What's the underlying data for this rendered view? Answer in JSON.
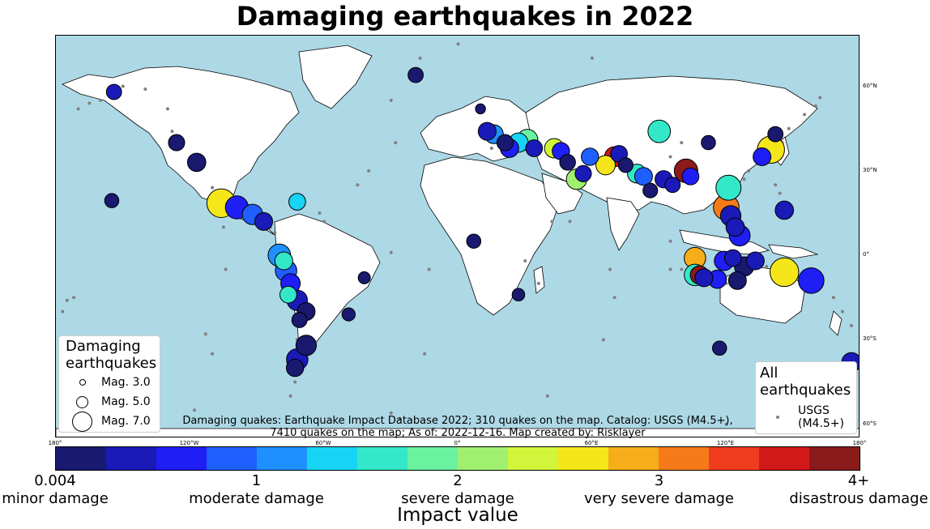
{
  "title": "Damaging earthquakes in 2022",
  "map": {
    "lat_labels": [
      {
        "text": "60°N",
        "lat": 60
      },
      {
        "text": "30°N",
        "lat": 30
      },
      {
        "text": "0°",
        "lat": 0
      },
      {
        "text": "30°S",
        "lat": -30
      },
      {
        "text": "60°S",
        "lat": -60
      }
    ],
    "lon_labels": [
      {
        "text": "180°",
        "lon": -180
      },
      {
        "text": "120°W",
        "lon": -120
      },
      {
        "text": "60°W",
        "lon": -60
      },
      {
        "text": "0°",
        "lon": 0
      },
      {
        "text": "60°E",
        "lon": 60
      },
      {
        "text": "120°E",
        "lon": 120
      },
      {
        "text": "180°",
        "lon": 180
      }
    ],
    "colors": {
      "ocean": "#add8e6",
      "land": "#ffffff",
      "all_quakes": "#808080"
    },
    "damaging_quakes": [
      {
        "lon": -154,
        "lat": 58,
        "v": 0.3,
        "mag": 5.0
      },
      {
        "lon": -126,
        "lat": 40,
        "v": 0.2,
        "mag": 5.2
      },
      {
        "lon": -117,
        "lat": 33,
        "v": 0.1,
        "mag": 5.6
      },
      {
        "lon": -106,
        "lat": 18.5,
        "v": 2.6,
        "mag": 7.6
      },
      {
        "lon": -99,
        "lat": 17,
        "v": 0.6,
        "mag": 6.5
      },
      {
        "lon": -92,
        "lat": 14.5,
        "v": 0.8,
        "mag": 6.0
      },
      {
        "lon": -87,
        "lat": 12,
        "v": 0.3,
        "mag": 5.5
      },
      {
        "lon": -72,
        "lat": 19,
        "v": 1.4,
        "mag": 5.3
      },
      {
        "lon": -155,
        "lat": 19.4,
        "v": 0.2,
        "mag": 4.8
      },
      {
        "lon": -80,
        "lat": 0,
        "v": 1.0,
        "mag": 6.4
      },
      {
        "lon": -78,
        "lat": -2,
        "v": 1.7,
        "mag": 5.5
      },
      {
        "lon": -77,
        "lat": -5.5,
        "v": 0.9,
        "mag": 6.2
      },
      {
        "lon": -75,
        "lat": -10,
        "v": 0.5,
        "mag": 5.8
      },
      {
        "lon": -76,
        "lat": -14,
        "v": 1.5,
        "mag": 5.3
      },
      {
        "lon": -72,
        "lat": -16,
        "v": 0.3,
        "mag": 6.0
      },
      {
        "lon": -68,
        "lat": -20,
        "v": 0.2,
        "mag": 5.5
      },
      {
        "lon": -71,
        "lat": -23,
        "v": 0.1,
        "mag": 5.0
      },
      {
        "lon": -68,
        "lat": -32,
        "v": 0.2,
        "mag": 6.0
      },
      {
        "lon": -72,
        "lat": -37,
        "v": 0.3,
        "mag": 6.2
      },
      {
        "lon": -73,
        "lat": -40,
        "v": 0.1,
        "mag": 5.4
      },
      {
        "lon": -49,
        "lat": -21,
        "v": 0.2,
        "mag": 4.6
      },
      {
        "lon": -42,
        "lat": -8,
        "v": 0.1,
        "mag": 4.4
      },
      {
        "lon": -19,
        "lat": 64,
        "v": 0.1,
        "mag": 5.0
      },
      {
        "lon": 7,
        "lat": 5,
        "v": 0.2,
        "mag": 4.8
      },
      {
        "lon": 27,
        "lat": -14,
        "v": 0.2,
        "mag": 4.5
      },
      {
        "lon": 10,
        "lat": 52,
        "v": 0.1,
        "mag": 4.0
      },
      {
        "lon": 13,
        "lat": 44,
        "v": 0.4,
        "mag": 5.5
      },
      {
        "lon": 16,
        "lat": 43,
        "v": 1.2,
        "mag": 5.7
      },
      {
        "lon": 21,
        "lat": 40,
        "v": 0.2,
        "mag": 5.2
      },
      {
        "lon": 23,
        "lat": 38,
        "v": 0.5,
        "mag": 5.6
      },
      {
        "lon": 27,
        "lat": 40,
        "v": 1.4,
        "mag": 5.8
      },
      {
        "lon": 31,
        "lat": 41,
        "v": 1.8,
        "mag": 6.1
      },
      {
        "lon": 34,
        "lat": 38,
        "v": 0.3,
        "mag": 5.3
      },
      {
        "lon": 43,
        "lat": 38,
        "v": 2.3,
        "mag": 5.8
      },
      {
        "lon": 46,
        "lat": 37,
        "v": 0.6,
        "mag": 5.4
      },
      {
        "lon": 49,
        "lat": 33,
        "v": 0.2,
        "mag": 5.1
      },
      {
        "lon": 53,
        "lat": 27,
        "v": 2.0,
        "mag": 6.0
      },
      {
        "lon": 56,
        "lat": 29,
        "v": 0.3,
        "mag": 5.2
      },
      {
        "lon": 59,
        "lat": 35,
        "v": 0.8,
        "mag": 5.4
      },
      {
        "lon": 66,
        "lat": 32,
        "v": 2.6,
        "mag": 5.8
      },
      {
        "lon": 70,
        "lat": 35,
        "v": 3.6,
        "mag": 5.9
      },
      {
        "lon": 72,
        "lat": 36,
        "v": 0.4,
        "mag": 5.3
      },
      {
        "lon": 75,
        "lat": 32,
        "v": 0.2,
        "mag": 4.9
      },
      {
        "lon": 80,
        "lat": 29,
        "v": 1.7,
        "mag": 5.7
      },
      {
        "lon": 83,
        "lat": 28,
        "v": 0.9,
        "mag": 5.5
      },
      {
        "lon": 86,
        "lat": 23,
        "v": 0.2,
        "mag": 4.9
      },
      {
        "lon": 92,
        "lat": 27,
        "v": 0.4,
        "mag": 5.4
      },
      {
        "lon": 96,
        "lat": 25,
        "v": 0.3,
        "mag": 5.0
      },
      {
        "lon": 90,
        "lat": 44,
        "v": 1.7,
        "mag": 6.4
      },
      {
        "lon": 102,
        "lat": 30,
        "v": 3.8,
        "mag": 6.6
      },
      {
        "lon": 104,
        "lat": 28,
        "v": 0.5,
        "mag": 5.3
      },
      {
        "lon": 112,
        "lat": 40,
        "v": 0.2,
        "mag": 4.8
      },
      {
        "lon": 121,
        "lat": 24,
        "v": 1.6,
        "mag": 6.9
      },
      {
        "lon": 120,
        "lat": 17,
        "v": 3.2,
        "mag": 7.0
      },
      {
        "lon": 122,
        "lat": 14,
        "v": 0.4,
        "mag": 6.0
      },
      {
        "lon": 124,
        "lat": 10,
        "v": 0.3,
        "mag": 5.6
      },
      {
        "lon": 126,
        "lat": 7,
        "v": 0.5,
        "mag": 6.1
      },
      {
        "lon": 140,
        "lat": 37.5,
        "v": 2.6,
        "mag": 7.3
      },
      {
        "lon": 136,
        "lat": 35,
        "v": 0.6,
        "mag": 5.5
      },
      {
        "lon": 142,
        "lat": 43,
        "v": 0.2,
        "mag": 5.0
      },
      {
        "lon": 146,
        "lat": 16,
        "v": 0.3,
        "mag": 5.6
      },
      {
        "lon": 106,
        "lat": -1,
        "v": 2.8,
        "mag": 6.2
      },
      {
        "lon": 108,
        "lat": -7,
        "v": 3.9,
        "mag": 5.6
      },
      {
        "lon": 106,
        "lat": -7,
        "v": 1.5,
        "mag": 6.2
      },
      {
        "lon": 110,
        "lat": -8,
        "v": 0.3,
        "mag": 5.5
      },
      {
        "lon": 116,
        "lat": -8.5,
        "v": 0.5,
        "mag": 5.6
      },
      {
        "lon": 119,
        "lat": -2,
        "v": 0.7,
        "mag": 5.8
      },
      {
        "lon": 123,
        "lat": -1,
        "v": 0.3,
        "mag": 5.3
      },
      {
        "lon": 128,
        "lat": -4,
        "v": 0.2,
        "mag": 5.8
      },
      {
        "lon": 133,
        "lat": -2,
        "v": 0.4,
        "mag": 5.5
      },
      {
        "lon": 146,
        "lat": -6,
        "v": 2.7,
        "mag": 7.6
      },
      {
        "lon": 158,
        "lat": -9,
        "v": 0.6,
        "mag": 7.0
      },
      {
        "lon": 125,
        "lat": -9,
        "v": 0.2,
        "mag": 5.5
      },
      {
        "lon": 117,
        "lat": -33,
        "v": 0.2,
        "mag": 4.8
      },
      {
        "lon": 176,
        "lat": -38,
        "v": 0.3,
        "mag": 5.8
      }
    ],
    "all_quakes_sample": [
      [
        -170,
        52
      ],
      [
        -165,
        54
      ],
      [
        -160,
        55
      ],
      [
        -150,
        60
      ],
      [
        -140,
        59
      ],
      [
        -130,
        52
      ],
      [
        -128,
        44
      ],
      [
        -110,
        24
      ],
      [
        -95,
        15
      ],
      [
        -84,
        10
      ],
      [
        -82,
        8
      ],
      [
        -70,
        18
      ],
      [
        -62,
        15
      ],
      [
        -60,
        12
      ],
      [
        -26,
        -58
      ],
      [
        -30,
        -56
      ],
      [
        -78,
        -2
      ],
      [
        -72,
        -30
      ],
      [
        -71,
        -35
      ],
      [
        -73,
        -45
      ],
      [
        -75,
        -50
      ],
      [
        -15,
        -35
      ],
      [
        -13,
        -5
      ],
      [
        -30,
        1
      ],
      [
        -45,
        25
      ],
      [
        -40,
        30
      ],
      [
        -28,
        40
      ],
      [
        -30,
        55
      ],
      [
        -17,
        70
      ],
      [
        0,
        75
      ],
      [
        20,
        80
      ],
      [
        60,
        70
      ],
      [
        40,
        -50
      ],
      [
        65,
        -30
      ],
      [
        70,
        -15
      ],
      [
        68,
        -5
      ],
      [
        95,
        5
      ],
      [
        95,
        -5
      ],
      [
        100,
        -5
      ],
      [
        115,
        -10
      ],
      [
        120,
        -10
      ],
      [
        128,
        -6
      ],
      [
        138,
        -4
      ],
      [
        150,
        -6
      ],
      [
        160,
        -10
      ],
      [
        168,
        -15
      ],
      [
        172,
        -20
      ],
      [
        176,
        -25
      ],
      [
        -177,
        -20
      ],
      [
        -175,
        -16
      ],
      [
        -172,
        -15
      ],
      [
        145,
        40
      ],
      [
        148,
        45
      ],
      [
        155,
        50
      ],
      [
        160,
        53
      ],
      [
        162,
        56
      ],
      [
        130,
        30
      ],
      [
        128,
        27
      ],
      [
        142,
        25
      ],
      [
        144,
        22
      ],
      [
        147,
        15
      ],
      [
        120,
        -60
      ],
      [
        145,
        -55
      ],
      [
        160,
        -60
      ],
      [
        -110,
        -35
      ],
      [
        -113,
        -28
      ],
      [
        -104,
        -5
      ],
      [
        -105,
        10
      ],
      [
        -118,
        -55
      ],
      [
        -135,
        -55
      ],
      [
        -150,
        -57
      ],
      [
        50,
        12
      ],
      [
        42,
        12
      ],
      [
        30,
        -2
      ],
      [
        36,
        -10
      ],
      [
        20,
        37
      ],
      [
        15,
        38
      ],
      [
        100,
        40
      ],
      [
        95,
        35
      ]
    ]
  },
  "legend_damaging": {
    "title_line1": "Damaging",
    "title_line2": "earthquakes",
    "items": [
      {
        "label": "Mag. 3.0",
        "mag": 3.0
      },
      {
        "label": "Mag. 5.0",
        "mag": 5.0
      },
      {
        "label": "Mag. 7.0",
        "mag": 7.0
      }
    ]
  },
  "legend_all": {
    "title_line1": "All",
    "title_line2": "earthquakes",
    "label_line1": "USGS",
    "label_line2": "(M4.5+)"
  },
  "source_line1": "Damaging quakes: Earthquake Impact Database 2022; 310 quakes on the map. Catalog: USGS (M4.5+),",
  "source_line2": "7410 quakes on the map; As of: 2022-12-16. Map created by: Risklayer",
  "colorbar": {
    "axis_title": "Impact value",
    "colors": [
      "#191970",
      "#1a1ab8",
      "#1e1ef5",
      "#1f5fff",
      "#1e90ff",
      "#17d4f5",
      "#33e8c8",
      "#6af2a0",
      "#a0f070",
      "#d2f53c",
      "#f5e61a",
      "#f5ad1a",
      "#f57a1a",
      "#f03c1e",
      "#d21919",
      "#8b1a1a"
    ],
    "labels": [
      {
        "value": "0.004",
        "text": "minor damage",
        "pos": 0.0
      },
      {
        "value": "1",
        "text": "moderate damage",
        "pos": 0.25
      },
      {
        "value": "2",
        "text": "severe damage",
        "pos": 0.5
      },
      {
        "value": "3",
        "text": "very severe damage",
        "pos": 0.75
      },
      {
        "value": "4+",
        "text": "disastrous damage",
        "pos": 1.0
      }
    ]
  }
}
